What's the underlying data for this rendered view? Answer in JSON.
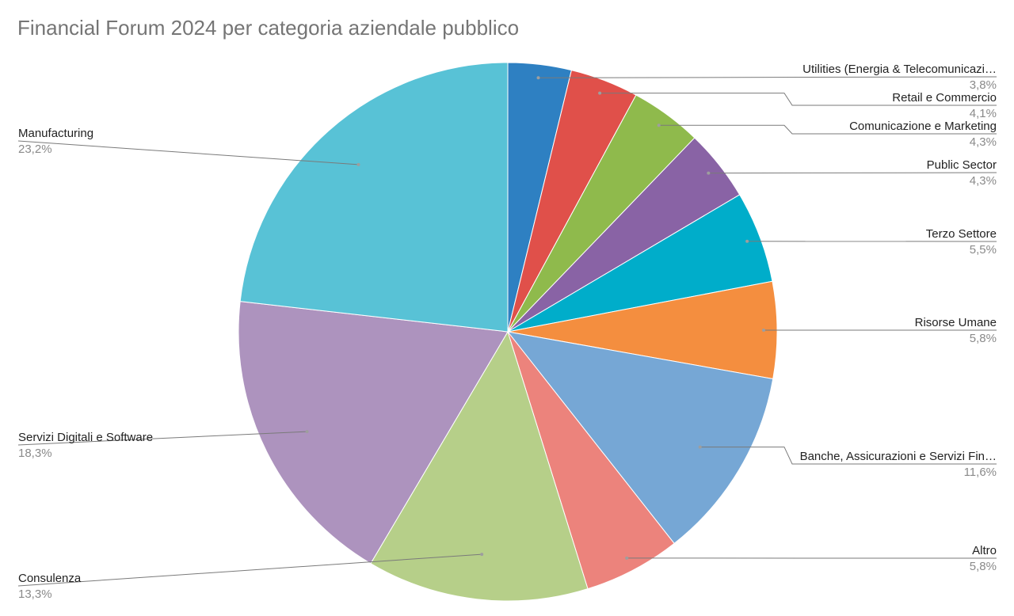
{
  "chart_data": {
    "type": "pie",
    "title": "Financial Forum 2024 per categoria aziendale pubblico",
    "start_angle_deg": 0,
    "direction": "clockwise",
    "legend": "none",
    "slices": [
      {
        "label": "Utilities (Energia & Telecomunicazi…",
        "value": 3.8,
        "percent_label": "3,8%",
        "color": "#2e80c2"
      },
      {
        "label": "Retail e Commercio",
        "value": 4.1,
        "percent_label": "4,1%",
        "color": "#e0504a"
      },
      {
        "label": "Comunicazione e Marketing",
        "value": 4.3,
        "percent_label": "4,3%",
        "color": "#8fba4c"
      },
      {
        "label": "Public Sector",
        "value": 4.3,
        "percent_label": "4,3%",
        "color": "#8963a5"
      },
      {
        "label": "Terzo Settore",
        "value": 5.5,
        "percent_label": "5,5%",
        "color": "#00adca"
      },
      {
        "label": "Risorse Umane",
        "value": 5.8,
        "percent_label": "5,8%",
        "color": "#f48e3f"
      },
      {
        "label": "Banche, Assicurazioni e Servizi Fin…",
        "value": 11.6,
        "percent_label": "11,6%",
        "color": "#76a7d5"
      },
      {
        "label": "Altro",
        "value": 5.8,
        "percent_label": "5,8%",
        "color": "#ec837c"
      },
      {
        "label": "Consulenza",
        "value": 13.3,
        "percent_label": "13,3%",
        "color": "#b6cf89"
      },
      {
        "label": "Servizi Digitali e Software",
        "value": 18.3,
        "percent_label": "18,3%",
        "color": "#ad93be"
      },
      {
        "label": "Manufacturing",
        "value": 23.2,
        "percent_label": "23,2%",
        "color": "#58c2d6"
      }
    ]
  }
}
